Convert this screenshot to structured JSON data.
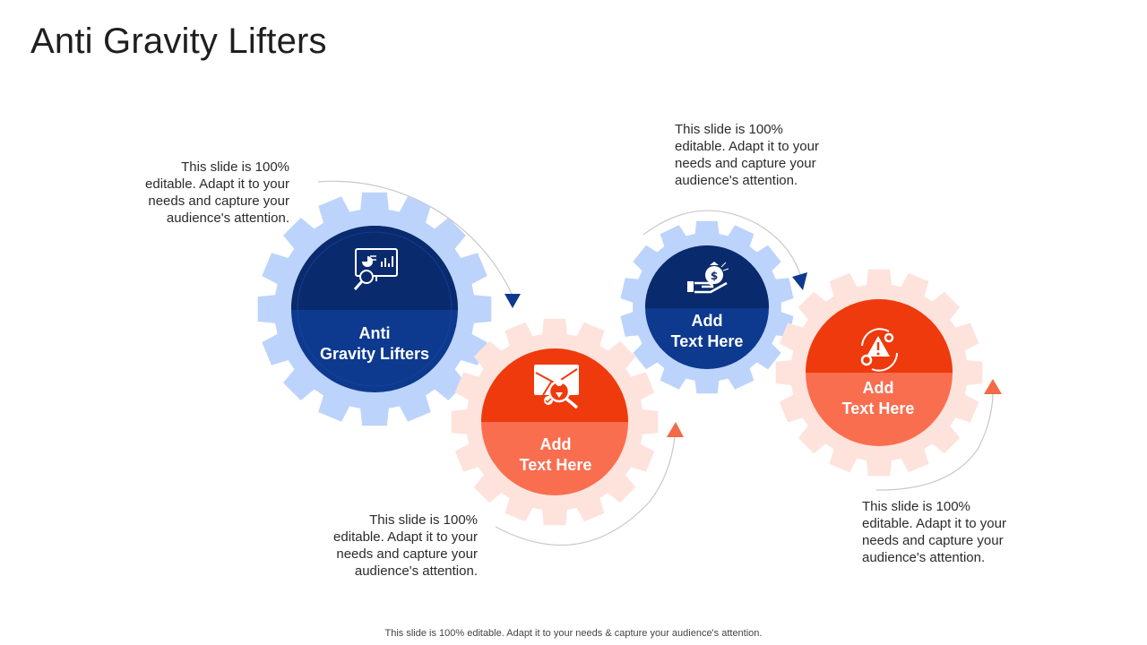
{
  "title": "Anti Gravity Lifters",
  "steps": [
    {
      "label": "Anti\nGravity Lifters",
      "description": "This slide is 100% editable. Adapt it to your needs and capture your audience's attention.",
      "icon": "presentation-magnifier-icon"
    },
    {
      "label": "Add\nText Here",
      "description": "This slide is 100% editable. Adapt it to your needs and capture your audience's attention.",
      "icon": "map-location-search-icon"
    },
    {
      "label": "Add\nText Here",
      "description": "This slide is 100% editable. Adapt it to your needs and capture your audience's attention.",
      "icon": "hand-money-bag-icon"
    },
    {
      "label": "Add\nText Here",
      "description": "This slide is 100% editable. Adapt it to your needs and capture your audience's attention.",
      "icon": "warning-gears-icon"
    }
  ],
  "colors": {
    "blue_gear_ring": "#bcd3fb",
    "blue_dark": "#0a2a6e",
    "blue_main": "#0d3a8f",
    "orange_gear_ring": "#fde3dc",
    "orange_dark": "#ee3a0c",
    "orange_main": "#f96e4f",
    "connector_line": "#c8c8c8"
  },
  "footer": "This slide is 100% editable. Adapt it to your needs & capture your audience's attention."
}
